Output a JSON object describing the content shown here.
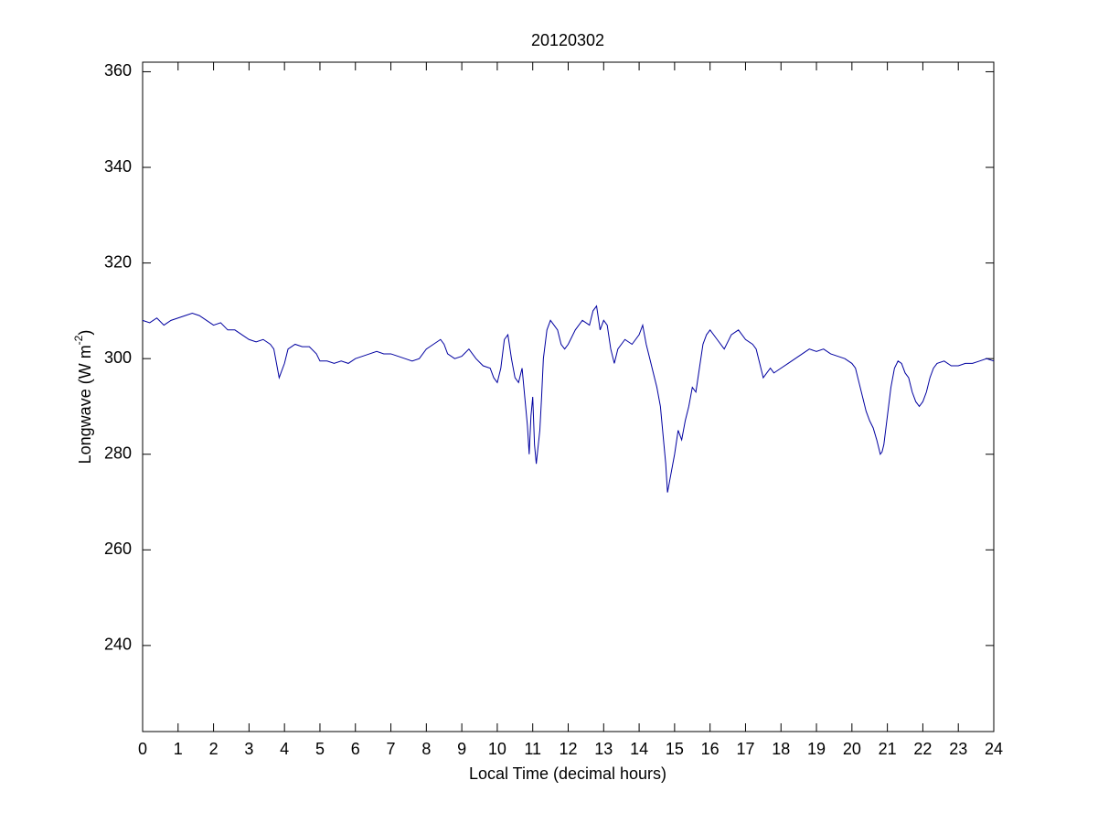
{
  "chart_data": {
    "type": "line",
    "title": "20120302",
    "xlabel": "Local Time (decimal hours)",
    "ylabel_parts": [
      "Longwave (W m",
      "-2",
      ")"
    ],
    "color": "#0000a0",
    "xlim": [
      0,
      24
    ],
    "xticks": [
      0,
      1,
      2,
      3,
      4,
      5,
      6,
      7,
      8,
      9,
      10,
      11,
      12,
      13,
      14,
      15,
      16,
      17,
      18,
      19,
      20,
      21,
      22,
      23,
      24
    ],
    "ylim": [
      222,
      362
    ],
    "yticks": [
      240,
      260,
      280,
      300,
      320,
      340,
      360
    ],
    "x": [
      0,
      0.2,
      0.4,
      0.6,
      0.8,
      1.0,
      1.2,
      1.4,
      1.6,
      1.8,
      2.0,
      2.2,
      2.4,
      2.6,
      2.8,
      3.0,
      3.2,
      3.4,
      3.6,
      3.7,
      3.8,
      3.85,
      3.9,
      4.0,
      4.1,
      4.3,
      4.5,
      4.7,
      4.9,
      5.0,
      5.2,
      5.4,
      5.6,
      5.8,
      6.0,
      6.2,
      6.4,
      6.6,
      6.8,
      7.0,
      7.2,
      7.4,
      7.6,
      7.8,
      8.0,
      8.2,
      8.4,
      8.5,
      8.6,
      8.8,
      9.0,
      9.2,
      9.4,
      9.6,
      9.8,
      9.9,
      10.0,
      10.1,
      10.2,
      10.3,
      10.4,
      10.5,
      10.6,
      10.7,
      10.8,
      10.85,
      10.9,
      10.95,
      11.0,
      11.05,
      11.1,
      11.2,
      11.25,
      11.3,
      11.4,
      11.5,
      11.6,
      11.7,
      11.8,
      11.9,
      12.0,
      12.2,
      12.4,
      12.6,
      12.7,
      12.8,
      12.9,
      13.0,
      13.1,
      13.2,
      13.3,
      13.4,
      13.6,
      13.8,
      14.0,
      14.1,
      14.2,
      14.3,
      14.4,
      14.5,
      14.6,
      14.7,
      14.75,
      14.8,
      14.9,
      15.0,
      15.1,
      15.2,
      15.3,
      15.4,
      15.5,
      15.6,
      15.7,
      15.8,
      15.9,
      16.0,
      16.2,
      16.4,
      16.6,
      16.8,
      17.0,
      17.2,
      17.3,
      17.4,
      17.5,
      17.6,
      17.7,
      17.8,
      18.0,
      18.2,
      18.4,
      18.6,
      18.8,
      19.0,
      19.2,
      19.4,
      19.6,
      19.8,
      20.0,
      20.1,
      20.2,
      20.3,
      20.4,
      20.5,
      20.6,
      20.7,
      20.8,
      20.85,
      20.9,
      21.0,
      21.1,
      21.2,
      21.3,
      21.4,
      21.5,
      21.6,
      21.7,
      21.8,
      21.9,
      22.0,
      22.1,
      22.2,
      22.3,
      22.4,
      22.6,
      22.8,
      23.0,
      23.2,
      23.4,
      23.6,
      23.8,
      24.0
    ],
    "values": [
      308,
      307.5,
      308.5,
      307,
      308,
      308.5,
      309,
      309.5,
      309,
      308,
      307,
      307.5,
      306,
      306,
      305,
      304,
      303.5,
      304,
      303,
      302,
      298,
      296,
      297,
      299,
      302,
      303,
      302.5,
      302.5,
      301,
      299.5,
      299.5,
      299,
      299.5,
      299,
      300,
      300.5,
      301,
      301.5,
      301,
      301,
      300.5,
      300,
      299.5,
      300,
      302,
      303,
      304,
      303,
      301,
      300,
      300.5,
      302,
      300,
      298.5,
      298,
      296,
      295,
      298,
      304,
      305,
      300,
      296,
      295,
      298,
      290,
      286,
      280,
      288,
      292,
      282,
      278,
      285,
      292,
      300,
      306,
      308,
      307,
      306,
      303,
      302,
      303,
      306,
      308,
      307,
      310,
      311,
      306,
      308,
      307,
      302,
      299,
      302,
      304,
      303,
      305,
      307,
      303,
      300,
      297,
      294,
      290,
      282,
      278,
      272,
      276,
      280,
      285,
      283,
      287,
      290,
      294,
      293,
      298,
      303,
      305,
      306,
      304,
      302,
      305,
      306,
      304,
      303,
      302,
      299,
      296,
      297,
      298,
      297,
      298,
      299,
      300,
      301,
      302,
      301.5,
      302,
      301,
      300.5,
      300,
      299,
      298,
      295,
      292,
      289,
      287,
      285.5,
      283,
      280,
      280.5,
      282,
      288,
      294,
      298,
      299.5,
      299,
      297,
      296,
      293,
      291,
      290,
      291,
      293,
      296,
      298,
      299,
      299.5,
      298.5,
      298.5,
      299,
      299,
      299.5,
      300,
      299.5
    ]
  }
}
